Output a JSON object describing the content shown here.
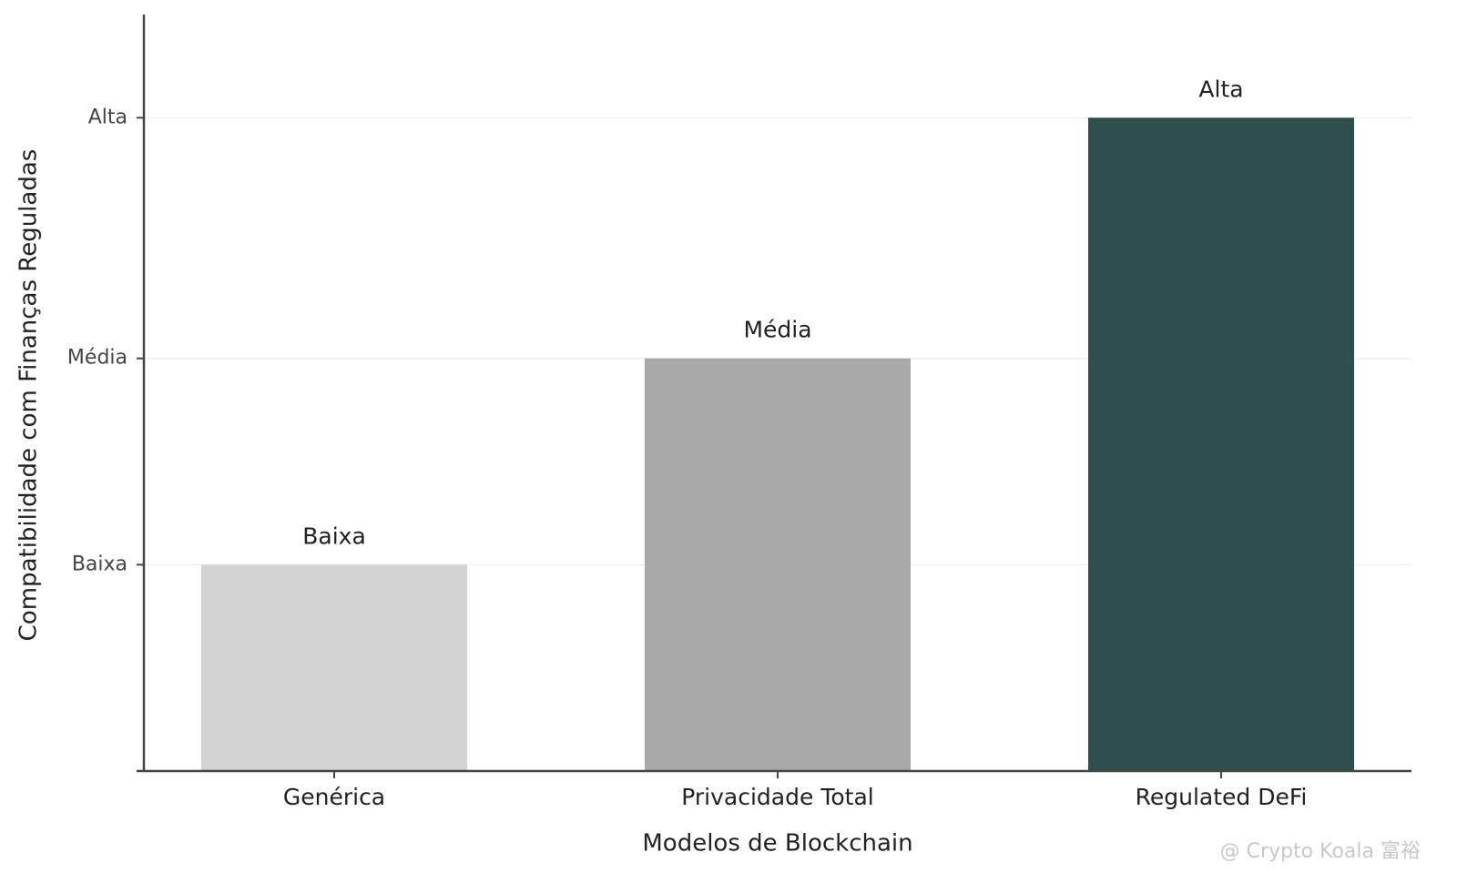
{
  "chart_data": {
    "type": "bar",
    "x_label": "Modelos de Blockchain",
    "y_label": "Compatibilidade com Finanças Reguladas",
    "categories": [
      "Genérica",
      "Privacidade Total",
      "Regulated DeFi"
    ],
    "values": [
      30,
      60,
      95
    ],
    "value_labels": [
      "Baixa",
      "Média",
      "Alta"
    ],
    "colors": [
      "#d3d3d3",
      "#a9a9a9",
      "#2f4f4f"
    ],
    "ylim": [
      0,
      110
    ],
    "yticks": [
      {
        "value": 30,
        "label": "Baixa"
      },
      {
        "value": 60,
        "label": "Média"
      },
      {
        "value": 95,
        "label": "Alta"
      }
    ],
    "grid": true,
    "watermark": "@ Crypto Koala 富裕"
  }
}
